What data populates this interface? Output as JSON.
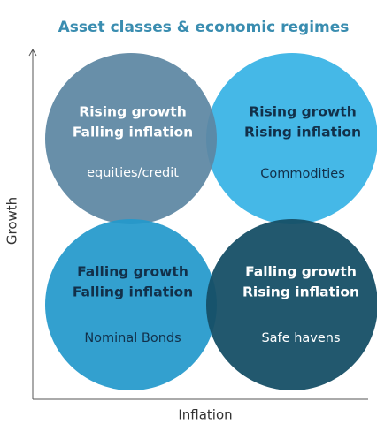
{
  "title": "Asset classes & economic regimes",
  "axes": {
    "y": "Growth",
    "x": "Inflation"
  },
  "quadrants": [
    {
      "heading": [
        "Rising growth",
        "Falling inflation"
      ],
      "label": "equities/credit"
    },
    {
      "heading": [
        "Rising growth",
        "Rising inflation"
      ],
      "label": "Commodities"
    },
    {
      "heading": [
        "Falling growth",
        "Falling inflation"
      ],
      "label": "Nominal Bonds"
    },
    {
      "heading": [
        "Falling growth",
        "Rising inflation"
      ],
      "label": "Safe havens"
    }
  ]
}
